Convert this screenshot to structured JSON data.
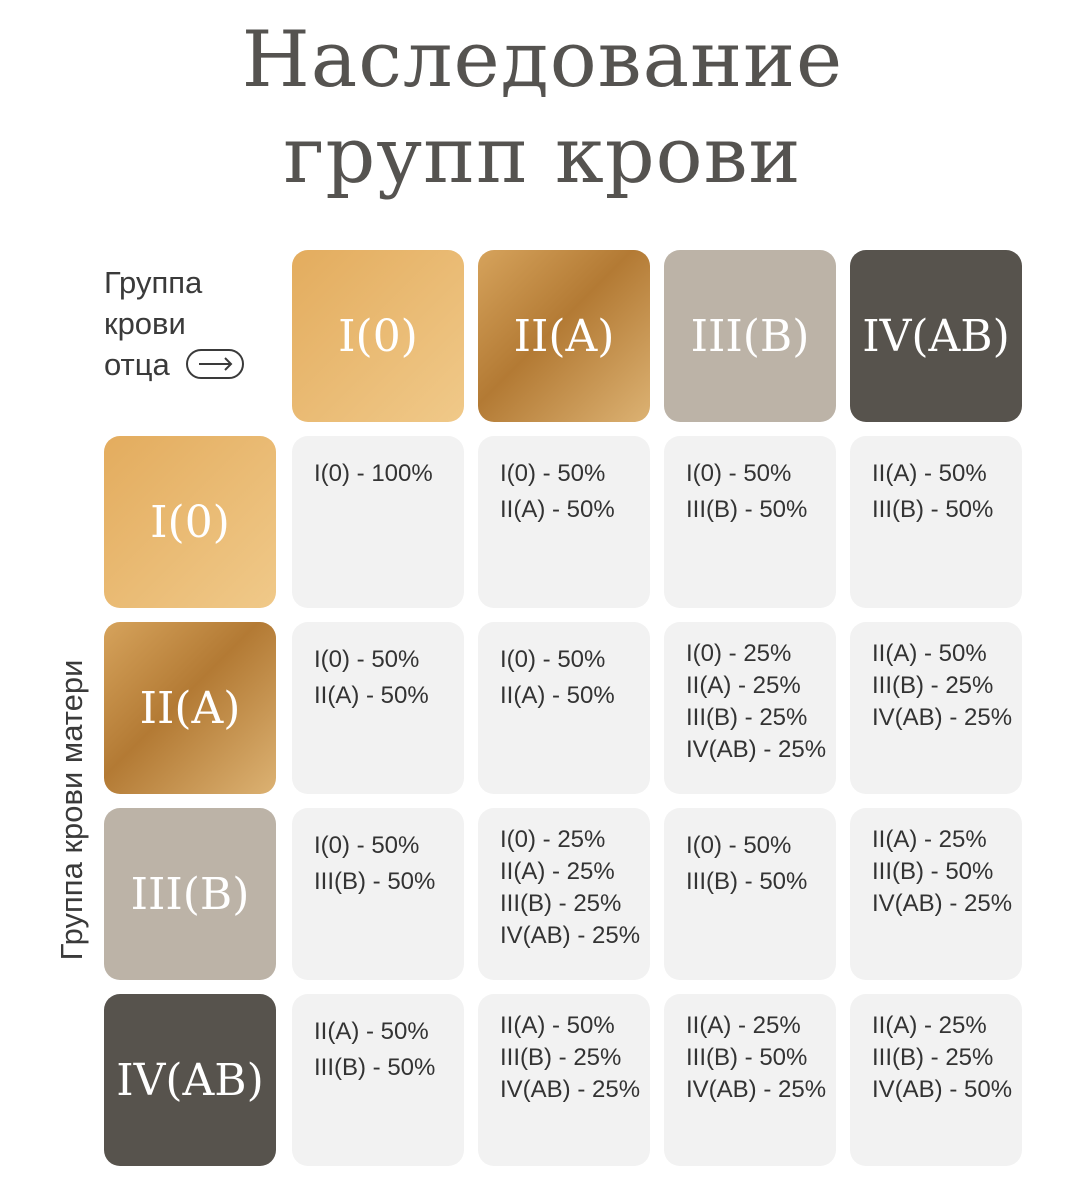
{
  "title": {
    "line1": "Наследование",
    "line2": "групп крови"
  },
  "father_label": [
    "Группа",
    "крови",
    "отца"
  ],
  "father_arrow_icon": "arrow-right-icon",
  "mother_label": "Группа крови матери",
  "colors": {
    "I": "#e6b46a",
    "II": "#b9823a",
    "III": "#bcb3a7",
    "IV": "#57534d",
    "cell": "#f2f2f2"
  },
  "father_groups": [
    "I(0)",
    "II(A)",
    "III(B)",
    "IV(AB)"
  ],
  "mother_groups": [
    "I(0)",
    "II(A)",
    "III(B)",
    "IV(AB)"
  ],
  "matrix": [
    [
      [
        "I(0) - 100%"
      ],
      [
        "I(0) - 50%",
        "II(A) - 50%"
      ],
      [
        "I(0) - 50%",
        "III(B) - 50%"
      ],
      [
        "II(A) - 50%",
        "III(B) - 50%"
      ]
    ],
    [
      [
        "I(0) - 50%",
        "II(A) - 50%"
      ],
      [
        "I(0) - 50%",
        "II(A) - 50%"
      ],
      [
        "I(0) - 25%",
        "II(A) - 25%",
        "III(B) - 25%",
        "IV(AB) - 25%"
      ],
      [
        "II(A) - 50%",
        "III(B) - 25%",
        "IV(AB) - 25%"
      ]
    ],
    [
      [
        "I(0) - 50%",
        "III(B) - 50%"
      ],
      [
        "I(0) - 25%",
        "II(A) - 25%",
        "III(B) - 25%",
        "IV(AB) - 25%"
      ],
      [
        "I(0) - 50%",
        "III(B) - 50%"
      ],
      [
        "II(A) - 25%",
        "III(B) - 50%",
        "IV(AB) - 25%"
      ]
    ],
    [
      [
        "II(A) - 50%",
        "III(B) - 50%"
      ],
      [
        "II(A) - 50%",
        "III(B) - 25%",
        "IV(AB) - 25%"
      ],
      [
        "II(A) - 25%",
        "III(B) - 50%",
        "IV(AB) - 25%"
      ],
      [
        "II(A) - 25%",
        "III(B) - 25%",
        "IV(AB) - 50%"
      ]
    ]
  ]
}
